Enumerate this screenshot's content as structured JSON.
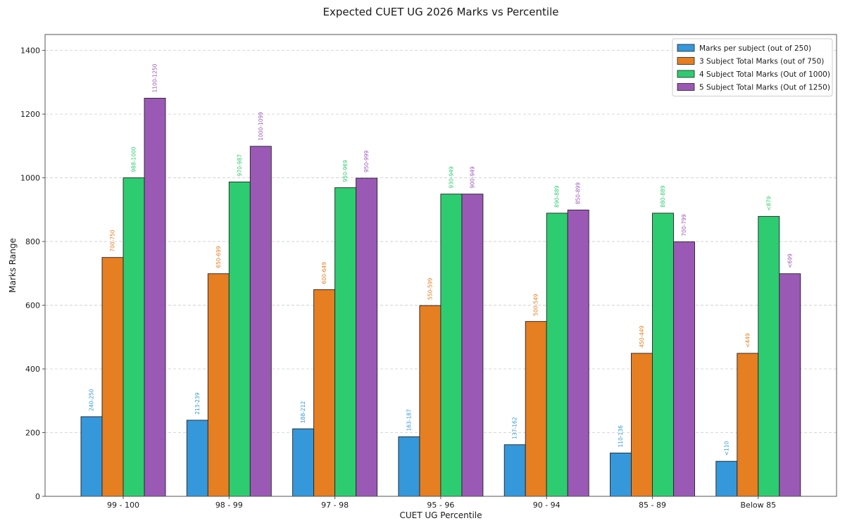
{
  "chart_data": {
    "type": "bar",
    "title": "Expected CUET UG 2026 Marks vs Percentile",
    "xlabel": "CUET UG Percentile",
    "ylabel": "Marks Range",
    "categories": [
      "99 - 100",
      "98 - 99",
      "97 - 98",
      "95 - 96",
      "90 - 94",
      "85 - 89",
      "Below 85"
    ],
    "ylim": [
      0,
      1450
    ],
    "yticks": [
      0,
      200,
      400,
      600,
      800,
      1000,
      1200,
      1400
    ],
    "grid": true,
    "legend_position": "top-right",
    "series": [
      {
        "name": "Marks per subject (out of 250)",
        "color": "#3498db",
        "values": [
          250,
          239,
          212,
          187,
          162,
          136,
          110
        ],
        "labels": [
          "240-250",
          "213-239",
          "188-212",
          "163-187",
          "137-162",
          "110-136",
          "<110"
        ]
      },
      {
        "name": "3 Subject Total Marks (out of 750)",
        "color": "#e67e22",
        "values": [
          750,
          699,
          649,
          599,
          549,
          449,
          449
        ],
        "labels": [
          "700-750",
          "650-699",
          "600-649",
          "550-599",
          "500-549",
          "450-449",
          "<449"
        ]
      },
      {
        "name": "4 Subject Total Marks (Out of 1000)",
        "color": "#2ecc71",
        "values": [
          1000,
          987,
          969,
          949,
          889,
          889,
          879
        ],
        "labels": [
          "988-1000",
          "970-987",
          "950-969",
          "930-949",
          "890-889",
          "880-889",
          "<879"
        ]
      },
      {
        "name": "5 Subject Total Marks (Out of 1250)",
        "color": "#9b59b6",
        "values": [
          1250,
          1099,
          999,
          949,
          899,
          799,
          699
        ],
        "labels": [
          "1100-1250",
          "1000-1099",
          "950-999",
          "900-949",
          "850-899",
          "700-799",
          "<699"
        ]
      }
    ]
  }
}
